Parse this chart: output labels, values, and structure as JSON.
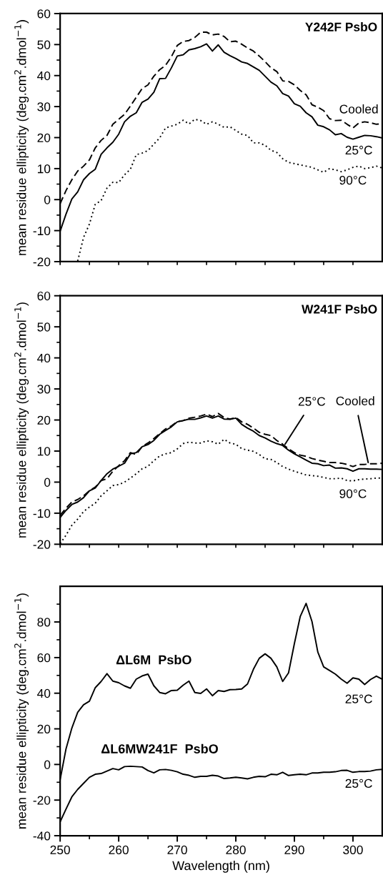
{
  "chart_data": [
    {
      "type": "line",
      "title": "Y242F PsbO",
      "ylabel": "mean residue ellipticity (deg.cm$^{2}$.dmol$^{−1}$)",
      "x": [
        250,
        251,
        252,
        253,
        254,
        255,
        256,
        257,
        258,
        259,
        260,
        261,
        262,
        263,
        264,
        265,
        266,
        267,
        268,
        269,
        270,
        271,
        272,
        273,
        274,
        275,
        276,
        277,
        278,
        279,
        280,
        281,
        282,
        283,
        284,
        285,
        286,
        287,
        288,
        289,
        290,
        291,
        292,
        293,
        294,
        295,
        296,
        297,
        298,
        299,
        300,
        301,
        302,
        303,
        304,
        305
      ],
      "series": [
        {
          "color": "#000000",
          "line_style": "solid",
          "values": [
            -10.2,
            -4.7,
            0.2,
            2.5,
            6.4,
            8.4,
            9.8,
            14.6,
            16.7,
            18.5,
            21.1,
            25.1,
            26.9,
            28.0,
            31.4,
            32.4,
            34.6,
            39.0,
            39.1,
            42.5,
            46.3,
            46.7,
            48.3,
            48.7,
            49.3,
            50.2,
            47.9,
            49.9,
            47.5,
            46.4,
            45.5,
            44.4,
            43.9,
            42.8,
            41.7,
            39.8,
            37.9,
            36.7,
            34.2,
            33.4,
            30.9,
            30.1,
            28.0,
            26.7,
            24.0,
            23.5,
            22.5,
            20.9,
            21.3,
            20.1,
            19.5,
            20.1,
            20.7,
            20.6,
            20.3,
            19.9
          ]
        },
        {
          "color": "#000000",
          "line_style": "dashed",
          "values": [
            -1.3,
            2.9,
            6.4,
            9.2,
            10.8,
            12.8,
            16.7,
            19.1,
            20.7,
            24.3,
            25.9,
            27.5,
            30.2,
            33.0,
            35.8,
            37.0,
            39.8,
            41.9,
            43.3,
            46.1,
            49.7,
            51.0,
            51.3,
            52.3,
            54.0,
            54.0,
            53.1,
            53.4,
            52.6,
            50.9,
            51.1,
            50.1,
            48.9,
            47.9,
            46.3,
            44.5,
            42.5,
            41.3,
            38.3,
            38.1,
            37.0,
            35.2,
            33.8,
            30.6,
            29.8,
            28.7,
            26.1,
            25.5,
            25.6,
            24.3,
            23.1,
            24.7,
            25.1,
            24.8,
            24.3,
            24.5
          ]
        },
        {
          "color": "#000000",
          "line_style": "dotted",
          "x": [
            253,
            254,
            255,
            256,
            257,
            258,
            259,
            260,
            261,
            262,
            263,
            264,
            265,
            266,
            267,
            268,
            269,
            270,
            271,
            272,
            273,
            274,
            275,
            276,
            277,
            278,
            279,
            280,
            281,
            282,
            283,
            284,
            285,
            286,
            287,
            288,
            289,
            290,
            291,
            292,
            293,
            294,
            295,
            296,
            297,
            298,
            299,
            300,
            301,
            302,
            303,
            304,
            305
          ],
          "values": [
            -19.8,
            -12.2,
            -7.9,
            -1.5,
            -0.3,
            3.7,
            5.6,
            5.5,
            8.0,
            9.8,
            14.5,
            15.0,
            15.8,
            17.9,
            19.9,
            23.1,
            23.7,
            24.3,
            25.6,
            24.4,
            25.9,
            25.5,
            24.3,
            25.1,
            24.3,
            23.3,
            23.5,
            22.3,
            21.1,
            20.7,
            18.3,
            18.3,
            17.5,
            15.9,
            15.2,
            13.2,
            12.0,
            11.6,
            11.2,
            10.8,
            10.4,
            9.6,
            8.8,
            10.0,
            9.6,
            9.0,
            9.6,
            10.4,
            10.8,
            10.0,
            10.3,
            10.8,
            10.2
          ]
        }
      ],
      "annotations": [
        {
          "text": "Cooled",
          "x": 301,
          "y": 24.7
        },
        {
          "text": "25°C",
          "x": 301,
          "y": 20.1
        },
        {
          "text": "90°C",
          "x": 300,
          "y": 10.4
        }
      ],
      "xlim": [
        250,
        305
      ],
      "ylim": [
        -20,
        60
      ],
      "xticks": [
        {
          "value": 250,
          "label": null
        },
        {
          "value": 255,
          "label": null
        },
        {
          "value": 260,
          "label": null
        },
        {
          "value": 265,
          "label": null
        },
        {
          "value": 270,
          "label": null
        },
        {
          "value": 275,
          "label": null
        },
        {
          "value": 280,
          "label": null
        },
        {
          "value": 285,
          "label": null
        },
        {
          "value": 290,
          "label": null
        },
        {
          "value": 295,
          "label": null
        },
        {
          "value": 300,
          "label": null
        }
      ],
      "yticks": [
        -20,
        {
          "value": -15,
          "label": null
        },
        -10,
        {
          "value": -5,
          "label": null
        },
        0,
        {
          "value": 5,
          "label": null
        },
        10,
        {
          "value": 15,
          "label": null
        },
        20,
        {
          "value": 25,
          "label": null
        },
        30,
        {
          "value": 35,
          "label": null
        },
        40,
        {
          "value": 45,
          "label": null
        },
        50,
        {
          "value": 55,
          "label": null
        },
        60
      ],
      "tick_labels": "y",
      "grid": false,
      "marker": "none"
    },
    {
      "type": "line",
      "title": "W241F PsbO",
      "ylabel": "mean residue ellipticity (deg.cm$^{2}$.dmol$^{−1}$)",
      "x": [
        250,
        251,
        252,
        253,
        254,
        255,
        256,
        257,
        258,
        259,
        260,
        261,
        262,
        263,
        264,
        265,
        266,
        267,
        268,
        269,
        270,
        271,
        272,
        273,
        274,
        275,
        276,
        277,
        278,
        279,
        280,
        281,
        282,
        283,
        284,
        285,
        286,
        287,
        288,
        289,
        290,
        291,
        292,
        293,
        294,
        295,
        296,
        297,
        298,
        299,
        300,
        301,
        302,
        303,
        304,
        305
      ],
      "series": [
        {
          "color": "#000000",
          "line_style": "solid",
          "values": [
            -11.4,
            -9.1,
            -7.2,
            -6.4,
            -5.0,
            -2.8,
            -1.9,
            0.5,
            2.7,
            4.2,
            5.1,
            6.1,
            9.1,
            9.5,
            11.4,
            12.1,
            13.4,
            15.4,
            16.6,
            17.8,
            19.4,
            19.8,
            20.3,
            20.2,
            20.7,
            21.3,
            20.6,
            21.3,
            20.3,
            20.2,
            20.6,
            18.6,
            17.4,
            16.4,
            15.0,
            14.2,
            13.2,
            12.4,
            11.8,
            10.3,
            9.1,
            8.1,
            7.1,
            6.1,
            5.9,
            5.3,
            5.5,
            4.5,
            4.6,
            4.3,
            3.5,
            4.3,
            4.3,
            4.2,
            4.2,
            4.1
          ]
        },
        {
          "color": "#000000",
          "line_style": "dashed",
          "values": [
            -10.7,
            -8.4,
            -6.4,
            -5.6,
            -4.4,
            -2.8,
            -1.6,
            0.5,
            1.1,
            3.5,
            5.3,
            6.9,
            9.5,
            8.9,
            11.4,
            12.6,
            14.0,
            15.6,
            17.1,
            18.1,
            19.5,
            19.8,
            20.6,
            20.9,
            21.3,
            21.9,
            21.1,
            22.1,
            20.8,
            20.3,
            20.8,
            19.4,
            18.6,
            17.4,
            16.0,
            15.4,
            15.0,
            13.4,
            12.2,
            10.7,
            9.5,
            8.7,
            8.3,
            7.6,
            7.1,
            6.7,
            6.3,
            6.3,
            6.1,
            5.7,
            5.0,
            5.7,
            5.7,
            5.9,
            5.9,
            6.1
          ]
        },
        {
          "color": "#000000",
          "line_style": "dotted",
          "values": [
            -19.8,
            -17.1,
            -13.9,
            -11.9,
            -9.5,
            -8.0,
            -6.8,
            -4.4,
            -2.8,
            -1.1,
            -0.8,
            0.0,
            1.3,
            2.7,
            4.3,
            5.1,
            6.9,
            8.4,
            9.1,
            9.5,
            10.7,
            12.4,
            12.9,
            12.6,
            12.6,
            13.3,
            13.0,
            12.2,
            13.8,
            12.6,
            12.2,
            10.8,
            10.3,
            9.9,
            8.9,
            7.5,
            7.3,
            6.3,
            5.0,
            4.2,
            3.5,
            2.9,
            2.3,
            2.1,
            1.9,
            1.5,
            1.1,
            1.1,
            1.3,
            0.5,
            0.4,
            0.8,
            1.0,
            1.1,
            1.3,
            1.3
          ]
        }
      ],
      "annotations": [
        {
          "text": "25°C",
          "x": 288.4,
          "y": 12.2
        },
        {
          "text": "Cooled",
          "x": 302.6,
          "y": 6.3
        },
        {
          "text": "90°C",
          "x": 300,
          "y": 0.4
        }
      ],
      "xlim": [
        250,
        305
      ],
      "ylim": [
        -20,
        60
      ],
      "xticks": [
        {
          "value": 250,
          "label": null
        },
        {
          "value": 255,
          "label": null
        },
        {
          "value": 260,
          "label": null
        },
        {
          "value": 265,
          "label": null
        },
        {
          "value": 270,
          "label": null
        },
        {
          "value": 275,
          "label": null
        },
        {
          "value": 280,
          "label": null
        },
        {
          "value": 285,
          "label": null
        },
        {
          "value": 290,
          "label": null
        },
        {
          "value": 295,
          "label": null
        },
        {
          "value": 300,
          "label": null
        }
      ],
      "yticks": [
        -20,
        {
          "value": -15,
          "label": null
        },
        -10,
        {
          "value": -5,
          "label": null
        },
        0,
        {
          "value": 5,
          "label": null
        },
        10,
        {
          "value": 15,
          "label": null
        },
        20,
        {
          "value": 25,
          "label": null
        },
        30,
        {
          "value": 35,
          "label": null
        },
        40,
        {
          "value": 45,
          "label": null
        },
        50,
        {
          "value": 55,
          "label": null
        },
        60
      ],
      "tick_labels": "y",
      "grid": false,
      "marker": "none"
    },
    {
      "type": "line",
      "xlabel": "Wavelength (nm)",
      "ylabel": "mean residue ellipticity (deg.cm$^{2}$.dmol$^{−1}$)",
      "x": [
        250,
        251,
        252,
        253,
        254,
        255,
        256,
        257,
        258,
        259,
        260,
        261,
        262,
        263,
        264,
        265,
        266,
        267,
        268,
        269,
        270,
        271,
        272,
        273,
        274,
        275,
        276,
        277,
        278,
        279,
        280,
        281,
        282,
        283,
        284,
        285,
        286,
        287,
        288,
        289,
        290,
        291,
        292,
        293,
        294,
        295,
        296,
        297,
        298,
        299,
        300,
        301,
        302,
        303,
        304,
        305
      ],
      "series": [
        {
          "color": "#000000",
          "line_style": "solid",
          "values": [
            -8.5,
            8.7,
            20.4,
            29.3,
            33.5,
            35.5,
            43.1,
            46.6,
            51.0,
            46.8,
            45.9,
            44.1,
            42.8,
            47.9,
            49.7,
            50.7,
            44.2,
            40.4,
            39.7,
            41.5,
            41.7,
            44.5,
            46.8,
            40.4,
            39.9,
            42.4,
            38.6,
            41.5,
            41.0,
            42.0,
            42.1,
            42.4,
            45.2,
            53.4,
            59.6,
            62.1,
            59.6,
            54.8,
            46.6,
            51.4,
            67.9,
            83.1,
            90.4,
            80.3,
            63.1,
            54.8,
            52.8,
            50.7,
            47.9,
            45.6,
            48.6,
            47.9,
            44.9,
            47.7,
            49.6,
            47.9
          ]
        },
        {
          "color": "#000000",
          "line_style": "solid",
          "values": [
            -32.2,
            -25.1,
            -18.2,
            -14.0,
            -10.6,
            -7.2,
            -5.5,
            -5.1,
            -3.7,
            -2.3,
            -3.0,
            -1.2,
            -1.0,
            -1.2,
            -1.4,
            -3.4,
            -4.7,
            -3.0,
            -2.8,
            -3.3,
            -4.1,
            -5.5,
            -6.1,
            -7.2,
            -6.7,
            -6.7,
            -6.1,
            -6.5,
            -7.9,
            -7.6,
            -7.2,
            -7.6,
            -8.1,
            -7.2,
            -6.7,
            -6.9,
            -5.5,
            -5.8,
            -4.4,
            -6.2,
            -5.8,
            -5.5,
            -5.8,
            -4.8,
            -4.8,
            -4.4,
            -4.4,
            -4.1,
            -3.4,
            -3.3,
            -4.4,
            -4.0,
            -4.0,
            -3.7,
            -3.0,
            -2.8
          ]
        }
      ],
      "annotations": [
        {
          "text": "ΔL6M  PsbO",
          "x": 266,
          "y": 44.2
        },
        {
          "text": "ΔL6MW241F  PsbO",
          "x": 267,
          "y": -3.0
        },
        {
          "text": "25°C",
          "x": 301,
          "y": 47.9
        },
        {
          "text": "25°C",
          "x": 301,
          "y": -4.0
        }
      ],
      "xlim": [
        250,
        305
      ],
      "ylim": [
        -40,
        100
      ],
      "xticks": [
        250,
        {
          "value": 255,
          "label": null
        },
        260,
        {
          "value": 265,
          "label": null
        },
        270,
        {
          "value": 275,
          "label": null
        },
        280,
        {
          "value": 285,
          "label": null
        },
        290,
        {
          "value": 295,
          "label": null
        },
        300
      ],
      "yticks": [
        -40,
        {
          "value": -30,
          "label": null
        },
        -20,
        {
          "value": -10,
          "label": null
        },
        0,
        {
          "value": 10,
          "label": null
        },
        20,
        {
          "value": 30,
          "label": null
        },
        40,
        {
          "value": 50,
          "label": null
        },
        60,
        {
          "value": 70,
          "label": null
        },
        80,
        {
          "value": 90,
          "label": null
        }
      ],
      "grid": false,
      "marker": "none"
    }
  ]
}
